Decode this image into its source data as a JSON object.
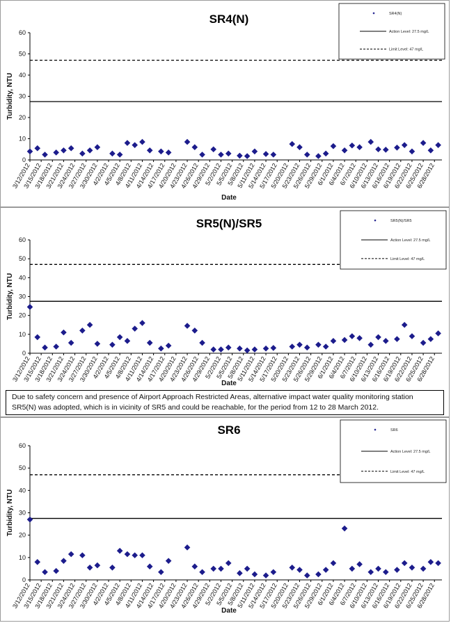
{
  "note": "Due to safety concern and presence of Airport Approach Restricted Areas, alternative impact water quality monitoring station SR5(N) was adopted, which is in vicinity of SR5 and could be reachable, for the period from 12 to 28 March 2012.",
  "colors": {
    "marker": "#1c1c8c",
    "line": "#000000"
  },
  "chart_data": [
    {
      "type": "scatter",
      "title": "SR4(N)",
      "xlabel": "Date",
      "ylabel": "Turbidity, NTU",
      "ylim": [
        0,
        60
      ],
      "yticks": [
        "0",
        "10",
        "20",
        "30",
        "40",
        "50",
        "60"
      ],
      "xtick_labels": [
        "3/12/2012",
        "3/15/2012",
        "3/18/2012",
        "3/21/2012",
        "3/24/2012",
        "3/27/2012",
        "3/30/2012",
        "4/2/2012",
        "4/5/2012",
        "4/8/2012",
        "4/11/2012",
        "4/14/2012",
        "4/17/2012",
        "4/20/2012",
        "4/23/2012",
        "4/26/2012",
        "4/29/2012",
        "5/2/2012",
        "5/5/2012",
        "5/8/2012",
        "5/11/2012",
        "5/14/2012",
        "5/17/2012",
        "5/20/2012",
        "5/23/2012",
        "5/26/2012",
        "5/29/2012",
        "6/1/2012",
        "6/4/2012",
        "6/7/2012",
        "6/10/2012",
        "6/13/2012",
        "6/16/2012",
        "6/19/2012",
        "6/22/2012",
        "6/25/2012",
        "6/28/2012"
      ],
      "legend": {
        "series": "SR4(N)",
        "action": "Action Level: 27.5 mg/L",
        "limit": "Limit Level: 47 mg/L",
        "position": "top-right"
      },
      "action_level": 27.5,
      "limit_level": 47,
      "series": [
        {
          "name": "SR4(N)",
          "points": [
            [
              "2012-03-12",
              4.0
            ],
            [
              "2012-03-14",
              5.5
            ],
            [
              "2012-03-16",
              2.5
            ],
            [
              "2012-03-19",
              3.5
            ],
            [
              "2012-03-21",
              4.5
            ],
            [
              "2012-03-23",
              5.5
            ],
            [
              "2012-03-26",
              3.0
            ],
            [
              "2012-03-28",
              4.5
            ],
            [
              "2012-03-30",
              6.0
            ],
            [
              "2012-04-03",
              3.0
            ],
            [
              "2012-04-05",
              2.5
            ],
            [
              "2012-04-07",
              8.0
            ],
            [
              "2012-04-09",
              7.0
            ],
            [
              "2012-04-11",
              8.5
            ],
            [
              "2012-04-13",
              4.5
            ],
            [
              "2012-04-16",
              4.0
            ],
            [
              "2012-04-18",
              3.5
            ],
            [
              "2012-04-23",
              8.5
            ],
            [
              "2012-04-25",
              6.0
            ],
            [
              "2012-04-27",
              2.5
            ],
            [
              "2012-04-30",
              5.0
            ],
            [
              "2012-05-02",
              2.5
            ],
            [
              "2012-05-04",
              3.0
            ],
            [
              "2012-05-07",
              2.0
            ],
            [
              "2012-05-09",
              1.8
            ],
            [
              "2012-05-11",
              4.0
            ],
            [
              "2012-05-14",
              2.8
            ],
            [
              "2012-05-16",
              2.5
            ],
            [
              "2012-05-21",
              7.5
            ],
            [
              "2012-05-23",
              6.0
            ],
            [
              "2012-05-25",
              2.5
            ],
            [
              "2012-05-28",
              1.8
            ],
            [
              "2012-05-30",
              3.0
            ],
            [
              "2012-06-01",
              6.5
            ],
            [
              "2012-06-04",
              4.5
            ],
            [
              "2012-06-06",
              6.8
            ],
            [
              "2012-06-08",
              6.0
            ],
            [
              "2012-06-11",
              8.5
            ],
            [
              "2012-06-13",
              5.0
            ],
            [
              "2012-06-15",
              4.8
            ],
            [
              "2012-06-18",
              5.8
            ],
            [
              "2012-06-20",
              7.0
            ],
            [
              "2012-06-22",
              4.0
            ],
            [
              "2012-06-25",
              8.0
            ],
            [
              "2012-06-27",
              4.5
            ],
            [
              "2012-06-29",
              7.0
            ]
          ]
        }
      ]
    },
    {
      "type": "scatter",
      "title": "SR5(N)/SR5",
      "xlabel": "Date",
      "ylabel": "Turbidity, NTU",
      "ylim": [
        0,
        60
      ],
      "yticks": [
        "0",
        "10",
        "20",
        "30",
        "40",
        "50",
        "60"
      ],
      "xtick_labels": [
        "3/12/2012",
        "3/15/2012",
        "3/18/2012",
        "3/21/2012",
        "3/24/2012",
        "3/27/2012",
        "3/30/2012",
        "4/2/2012",
        "4/5/2012",
        "4/8/2012",
        "4/11/2012",
        "4/14/2012",
        "4/17/2012",
        "4/20/2012",
        "4/23/2012",
        "4/26/2012",
        "4/29/2012",
        "5/2/2012",
        "5/5/2012",
        "5/8/2012",
        "5/11/2012",
        "5/14/2012",
        "5/17/2012",
        "5/20/2012",
        "5/23/2012",
        "5/26/2012",
        "5/29/2012",
        "6/1/2012",
        "6/4/2012",
        "6/7/2012",
        "6/10/2012",
        "6/13/2012",
        "6/16/2012",
        "6/19/2012",
        "6/22/2012",
        "6/25/2012",
        "6/28/2012"
      ],
      "legend": {
        "series": "SR5(N)/SR5",
        "action": "Action Level: 27.5 mg/L",
        "limit": "Limit Level: 47 mg/L",
        "position": "top-right"
      },
      "action_level": 27.5,
      "limit_level": 47,
      "series": [
        {
          "name": "SR5(N)/SR5",
          "points": [
            [
              "2012-03-12",
              24.5
            ],
            [
              "2012-03-14",
              8.5
            ],
            [
              "2012-03-16",
              3.0
            ],
            [
              "2012-03-19",
              3.5
            ],
            [
              "2012-03-21",
              11.0
            ],
            [
              "2012-03-23",
              5.5
            ],
            [
              "2012-03-26",
              12.0
            ],
            [
              "2012-03-28",
              15.0
            ],
            [
              "2012-03-30",
              5.0
            ],
            [
              "2012-04-03",
              4.5
            ],
            [
              "2012-04-05",
              8.5
            ],
            [
              "2012-04-07",
              6.5
            ],
            [
              "2012-04-09",
              13.0
            ],
            [
              "2012-04-11",
              16.0
            ],
            [
              "2012-04-13",
              5.5
            ],
            [
              "2012-04-16",
              2.5
            ],
            [
              "2012-04-18",
              4.0
            ],
            [
              "2012-04-23",
              14.5
            ],
            [
              "2012-04-25",
              12.0
            ],
            [
              "2012-04-27",
              5.5
            ],
            [
              "2012-04-30",
              2.0
            ],
            [
              "2012-05-02",
              2.0
            ],
            [
              "2012-05-04",
              3.0
            ],
            [
              "2012-05-07",
              2.5
            ],
            [
              "2012-05-09",
              1.5
            ],
            [
              "2012-05-11",
              2.0
            ],
            [
              "2012-05-14",
              2.5
            ],
            [
              "2012-05-16",
              2.8
            ],
            [
              "2012-05-21",
              3.5
            ],
            [
              "2012-05-23",
              4.5
            ],
            [
              "2012-05-25",
              3.0
            ],
            [
              "2012-05-28",
              4.5
            ],
            [
              "2012-05-30",
              3.5
            ],
            [
              "2012-06-01",
              6.5
            ],
            [
              "2012-06-04",
              7.0
            ],
            [
              "2012-06-06",
              9.0
            ],
            [
              "2012-06-08",
              8.0
            ],
            [
              "2012-06-11",
              4.5
            ],
            [
              "2012-06-13",
              8.5
            ],
            [
              "2012-06-15",
              6.5
            ],
            [
              "2012-06-18",
              7.5
            ],
            [
              "2012-06-20",
              15.0
            ],
            [
              "2012-06-22",
              9.0
            ],
            [
              "2012-06-25",
              5.5
            ],
            [
              "2012-06-27",
              7.5
            ],
            [
              "2012-06-29",
              10.5
            ]
          ]
        }
      ]
    },
    {
      "type": "scatter",
      "title": "SR6",
      "xlabel": "Date",
      "ylabel": "Turbidity, NTU",
      "ylim": [
        0,
        60
      ],
      "yticks": [
        "0",
        "10",
        "20",
        "30",
        "40",
        "50",
        "60"
      ],
      "xtick_labels": [
        "3/12/2012",
        "3/15/2012",
        "3/18/2012",
        "3/21/2012",
        "3/24/2012",
        "3/27/2012",
        "3/30/2012",
        "4/2/2012",
        "4/5/2012",
        "4/8/2012",
        "4/11/2012",
        "4/14/2012",
        "4/17/2012",
        "4/20/2012",
        "4/23/2012",
        "4/26/2012",
        "4/29/2012",
        "5/2/2012",
        "5/5/2012",
        "5/8/2012",
        "5/11/2012",
        "5/14/2012",
        "5/17/2012",
        "5/20/2012",
        "5/23/2012",
        "5/26/2012",
        "5/29/2012",
        "6/1/2012",
        "6/4/2012",
        "6/7/2012",
        "6/10/2012",
        "6/13/2012",
        "6/16/2012",
        "6/19/2012",
        "6/22/2012",
        "6/25/2012",
        "6/28/2012"
      ],
      "legend": {
        "series": "SR6",
        "action": "Action Level: 27.5 mg/L",
        "limit": "Limit Level: 47 mg/L",
        "position": "top-right"
      },
      "action_level": 27.5,
      "limit_level": 47,
      "series": [
        {
          "name": "SR6",
          "points": [
            [
              "2012-03-12",
              27.0
            ],
            [
              "2012-03-14",
              8.0
            ],
            [
              "2012-03-16",
              3.5
            ],
            [
              "2012-03-19",
              4.0
            ],
            [
              "2012-03-21",
              8.5
            ],
            [
              "2012-03-23",
              11.5
            ],
            [
              "2012-03-26",
              11.0
            ],
            [
              "2012-03-28",
              5.5
            ],
            [
              "2012-03-30",
              6.5
            ],
            [
              "2012-04-03",
              5.5
            ],
            [
              "2012-04-05",
              13.0
            ],
            [
              "2012-04-07",
              11.5
            ],
            [
              "2012-04-09",
              11.0
            ],
            [
              "2012-04-11",
              11.0
            ],
            [
              "2012-04-13",
              6.0
            ],
            [
              "2012-04-16",
              3.5
            ],
            [
              "2012-04-18",
              8.5
            ],
            [
              "2012-04-23",
              14.5
            ],
            [
              "2012-04-25",
              6.0
            ],
            [
              "2012-04-27",
              3.5
            ],
            [
              "2012-04-30",
              5.0
            ],
            [
              "2012-05-02",
              5.0
            ],
            [
              "2012-05-04",
              7.5
            ],
            [
              "2012-05-07",
              3.0
            ],
            [
              "2012-05-09",
              5.0
            ],
            [
              "2012-05-11",
              2.5
            ],
            [
              "2012-05-14",
              2.0
            ],
            [
              "2012-05-16",
              3.5
            ],
            [
              "2012-05-21",
              5.5
            ],
            [
              "2012-05-23",
              4.5
            ],
            [
              "2012-05-25",
              2.0
            ],
            [
              "2012-05-28",
              2.5
            ],
            [
              "2012-05-30",
              4.5
            ],
            [
              "2012-06-01",
              7.5
            ],
            [
              "2012-06-04",
              23.0
            ],
            [
              "2012-06-06",
              5.0
            ],
            [
              "2012-06-08",
              7.0
            ],
            [
              "2012-06-11",
              3.5
            ],
            [
              "2012-06-13",
              5.0
            ],
            [
              "2012-06-15",
              3.5
            ],
            [
              "2012-06-18",
              4.5
            ],
            [
              "2012-06-20",
              7.5
            ],
            [
              "2012-06-22",
              5.5
            ],
            [
              "2012-06-25",
              5.0
            ],
            [
              "2012-06-27",
              8.0
            ],
            [
              "2012-06-29",
              7.5
            ]
          ]
        }
      ]
    }
  ]
}
